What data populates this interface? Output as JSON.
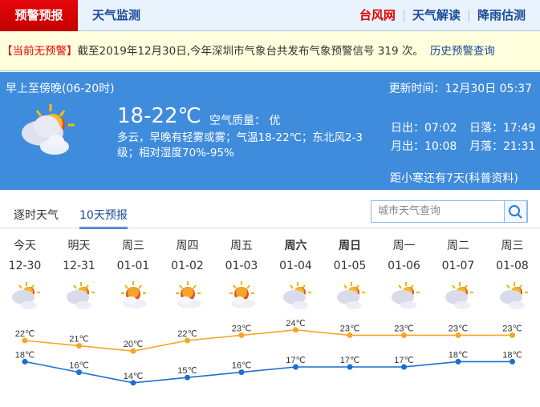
{
  "header": {
    "active_tab": "预警预报",
    "tab2": "天气监测",
    "links": [
      {
        "label": "台风网",
        "color": "#e00000"
      },
      {
        "label": "天气解读",
        "color": "#1a4a99"
      },
      {
        "label": "降雨估测",
        "color": "#1a4a99"
      }
    ]
  },
  "alert": {
    "status": "【当前无预警】",
    "text": "截至2019年12月30日,今年深圳市气象台共发布气象预警信号 319 次。",
    "link": "历史预警查询"
  },
  "current": {
    "period": "早上至傍晚(06-20时)",
    "updated": "更新时间：12月30日 05:37",
    "temp": "18-22℃",
    "air_quality": "空气质量： 优",
    "desc": "多云，早晚有轻雾或雾；气温18-22℃；东北风2-3级；相对湿度70%-95%",
    "sunrise": "日出：07:02",
    "sunset": "日落：17:49",
    "moonrise": "月出：10:08",
    "moonset": "月落：21:31",
    "solar_term": "距小寒还有7天(科普资料)",
    "icon": "partly-cloudy-icon"
  },
  "tabs": [
    {
      "label": "逐时天气",
      "active": false
    },
    {
      "label": "10天预报",
      "active": true
    }
  ],
  "search": {
    "placeholder": "城市天气查询",
    "icon": "search-icon"
  },
  "forecast": [
    {
      "day": "今天",
      "date": "12-30",
      "icon": "cloudy",
      "bold": false
    },
    {
      "day": "明天",
      "date": "12-31",
      "icon": "cloudy",
      "bold": false
    },
    {
      "day": "周三",
      "date": "01-01",
      "icon": "sunny-cloud",
      "bold": false
    },
    {
      "day": "周四",
      "date": "01-02",
      "icon": "sunny-cloud",
      "bold": false
    },
    {
      "day": "周五",
      "date": "01-03",
      "icon": "sunny-cloud",
      "bold": false
    },
    {
      "day": "周六",
      "date": "01-04",
      "icon": "cloudy",
      "bold": true
    },
    {
      "day": "周日",
      "date": "01-05",
      "icon": "cloudy",
      "bold": true
    },
    {
      "day": "周一",
      "date": "01-06",
      "icon": "cloudy",
      "bold": false
    },
    {
      "day": "周二",
      "date": "01-07",
      "icon": "cloudy",
      "bold": false
    },
    {
      "day": "周三",
      "date": "01-08",
      "icon": "cloudy",
      "bold": false
    }
  ],
  "chart_data": {
    "type": "line",
    "categories": [
      "12-30",
      "12-31",
      "01-01",
      "01-02",
      "01-03",
      "01-04",
      "01-05",
      "01-06",
      "01-07",
      "01-08"
    ],
    "unit": "℃",
    "series": [
      {
        "values": [
          22,
          21,
          20,
          22,
          23,
          24,
          23,
          23,
          23,
          23
        ],
        "color": "#f5a623"
      },
      {
        "values": [
          18,
          16,
          14,
          15,
          16,
          17,
          17,
          17,
          18,
          18
        ],
        "color": "#1a6fd0"
      }
    ]
  }
}
